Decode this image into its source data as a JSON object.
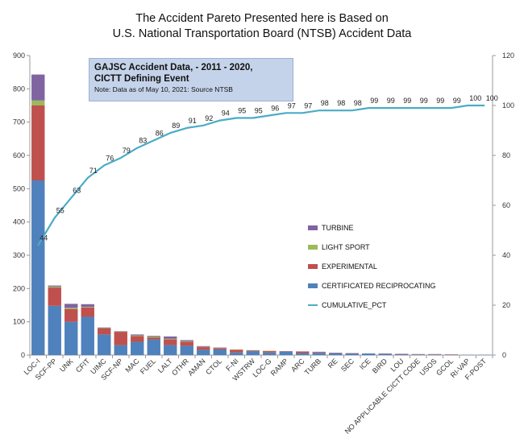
{
  "title": {
    "line1": "The Accident Pareto Presented here is Based on",
    "line2": "U.S. National Transportation Board (NTSB) Accident Data"
  },
  "info_box": {
    "line1": "GAJSC Accident Data,  -  2011 - 2020,",
    "line2": "CICTT Defining Event",
    "line3": "Note: Data as of  May 10, 2021: Source NTSB"
  },
  "colors": {
    "turbine": "#8064a2",
    "light_sport": "#9bbb59",
    "experimental": "#c0504d",
    "certificated_reciprocating": "#4f81bd",
    "cumulative_pct": "#4bacc6"
  },
  "chart_data": {
    "type": "bar",
    "categories": [
      "LOC-I",
      "SCF-PP",
      "UNK",
      "CFIT",
      "UIMC",
      "SCF-NP",
      "MAC",
      "FUEL",
      "LALT",
      "OTHR",
      "AMAN",
      "CTOL",
      "F-NI",
      "WSTRW",
      "LOC-G",
      "RAMP",
      "ARC",
      "TURB",
      "RE",
      "SEC",
      "ICE",
      "BIRD",
      "LOU",
      "NO APPLICABLE CICTT CODE",
      "USOS",
      "GCOL",
      "RI-VAP",
      "F-POST"
    ],
    "series": [
      {
        "name": "CERTIFICATED RECIPROCATING",
        "color": "#4f81bd",
        "values": [
          525,
          148,
          100,
          115,
          62,
          30,
          40,
          47,
          30,
          28,
          16,
          17,
          8,
          12,
          8,
          10,
          6,
          7,
          6,
          5,
          5,
          4,
          3,
          2,
          2,
          1,
          1,
          1
        ]
      },
      {
        "name": "EXPERIMENTAL",
        "color": "#c0504d",
        "values": [
          225,
          55,
          38,
          28,
          18,
          40,
          17,
          6,
          17,
          12,
          8,
          4,
          8,
          2,
          4,
          1,
          5,
          2,
          1,
          1,
          0,
          1,
          1,
          1,
          1,
          1,
          0,
          0
        ]
      },
      {
        "name": "LIGHT SPORT",
        "color": "#9bbb59",
        "values": [
          15,
          3,
          4,
          2,
          1,
          1,
          2,
          3,
          2,
          2,
          1,
          1,
          1,
          1,
          1,
          0,
          0,
          0,
          0,
          0,
          0,
          0,
          0,
          0,
          0,
          0,
          0,
          0
        ]
      },
      {
        "name": "TURBINE",
        "color": "#8064a2",
        "values": [
          78,
          3,
          12,
          8,
          2,
          1,
          3,
          2,
          7,
          3,
          2,
          1,
          0,
          0,
          0,
          1,
          0,
          1,
          0,
          0,
          0,
          0,
          0,
          0,
          0,
          0,
          0,
          0
        ]
      }
    ],
    "cumulative": {
      "name": "CUMULATIVE_PCT",
      "color": "#4bacc6",
      "values": [
        44,
        55,
        63,
        71,
        76,
        79,
        83,
        86,
        89,
        91,
        92,
        94,
        95,
        95,
        96,
        97,
        97,
        98,
        98,
        98,
        99,
        99,
        99,
        99,
        99,
        99,
        100,
        100
      ]
    },
    "ylim": [
      0,
      900
    ],
    "yticks": [
      0,
      100,
      200,
      300,
      400,
      500,
      600,
      700,
      800,
      900
    ],
    "y2lim": [
      0,
      120
    ],
    "y2ticks": [
      0,
      20,
      40,
      60,
      80,
      100,
      120
    ],
    "grid": false,
    "legend": {
      "placement": "center-right",
      "entries": [
        {
          "label": "TURBINE",
          "color": "#8064a2",
          "kind": "bar"
        },
        {
          "label": "LIGHT SPORT",
          "color": "#9bbb59",
          "kind": "bar"
        },
        {
          "label": "EXPERIMENTAL",
          "color": "#c0504d",
          "kind": "bar"
        },
        {
          "label": "CERTIFICATED RECIPROCATING",
          "color": "#4f81bd",
          "kind": "bar"
        },
        {
          "label": "CUMULATIVE_PCT",
          "color": "#4bacc6",
          "kind": "line"
        }
      ]
    }
  }
}
